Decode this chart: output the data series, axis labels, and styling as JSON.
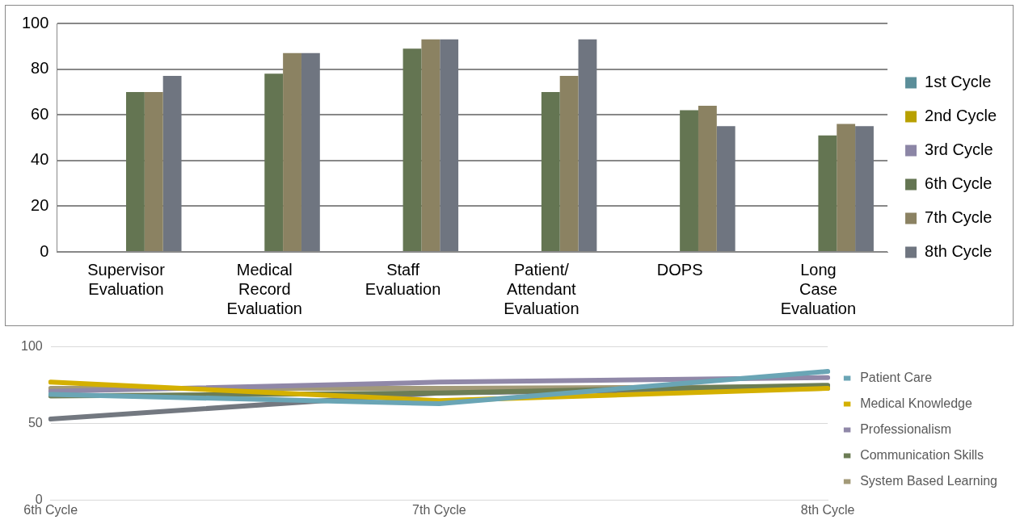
{
  "chart_data": [
    {
      "type": "bar",
      "categories": [
        "Supervisor Evaluation",
        "Medical Record Evaluation",
        "Staff Evaluation",
        "Patient/ Attendant Evaluation",
        "DOPS",
        "Long Case Evaluation"
      ],
      "series": [
        {
          "name": "1st Cycle",
          "color": "#5b8e99",
          "values": [
            null,
            null,
            null,
            null,
            null,
            null
          ]
        },
        {
          "name": "2nd Cycle",
          "color": "#b8a000",
          "values": [
            null,
            null,
            null,
            null,
            null,
            null
          ]
        },
        {
          "name": "3rd Cycle",
          "color": "#8c86a6",
          "values": [
            null,
            null,
            null,
            null,
            null,
            null
          ]
        },
        {
          "name": "6th Cycle",
          "color": "#647552",
          "values": [
            70,
            78,
            89,
            70,
            62,
            51
          ]
        },
        {
          "name": "7th Cycle",
          "color": "#8b8262",
          "values": [
            70,
            87,
            93,
            77,
            64,
            56
          ]
        },
        {
          "name": "8th Cycle",
          "color": "#6f7580",
          "values": [
            77,
            87,
            93,
            93,
            55,
            55
          ]
        }
      ],
      "ylim": [
        0,
        100
      ],
      "yticks": [
        0,
        20,
        40,
        60,
        80,
        100
      ],
      "grid": "y",
      "legend": "right"
    },
    {
      "type": "line",
      "categories": [
        "6th Cycle",
        "7th Cycle",
        "8th Cycle"
      ],
      "series": [
        {
          "name": "Patient Care",
          "color": "#6aa5b5",
          "values": [
            69,
            63,
            84
          ]
        },
        {
          "name": "Medical Knowledge",
          "color": "#d4b000",
          "values": [
            77,
            65,
            73
          ]
        },
        {
          "name": "Professionalism",
          "color": "#9088a8",
          "values": [
            71,
            77,
            80
          ]
        },
        {
          "name": "Communication Skills",
          "color": "#6c7d55",
          "values": [
            68,
            70,
            75
          ]
        },
        {
          "name": "System Based Learning",
          "color": "#a39a78",
          "values": [
            73,
            73,
            74
          ]
        },
        {
          "color": "#737880",
          "values": [
            53,
            70,
            73
          ]
        }
      ],
      "ylim": [
        0,
        100
      ],
      "yticks": [
        0,
        50,
        100
      ],
      "grid": "y",
      "legend": "right",
      "marker": "none",
      "line_style": "solid"
    }
  ]
}
